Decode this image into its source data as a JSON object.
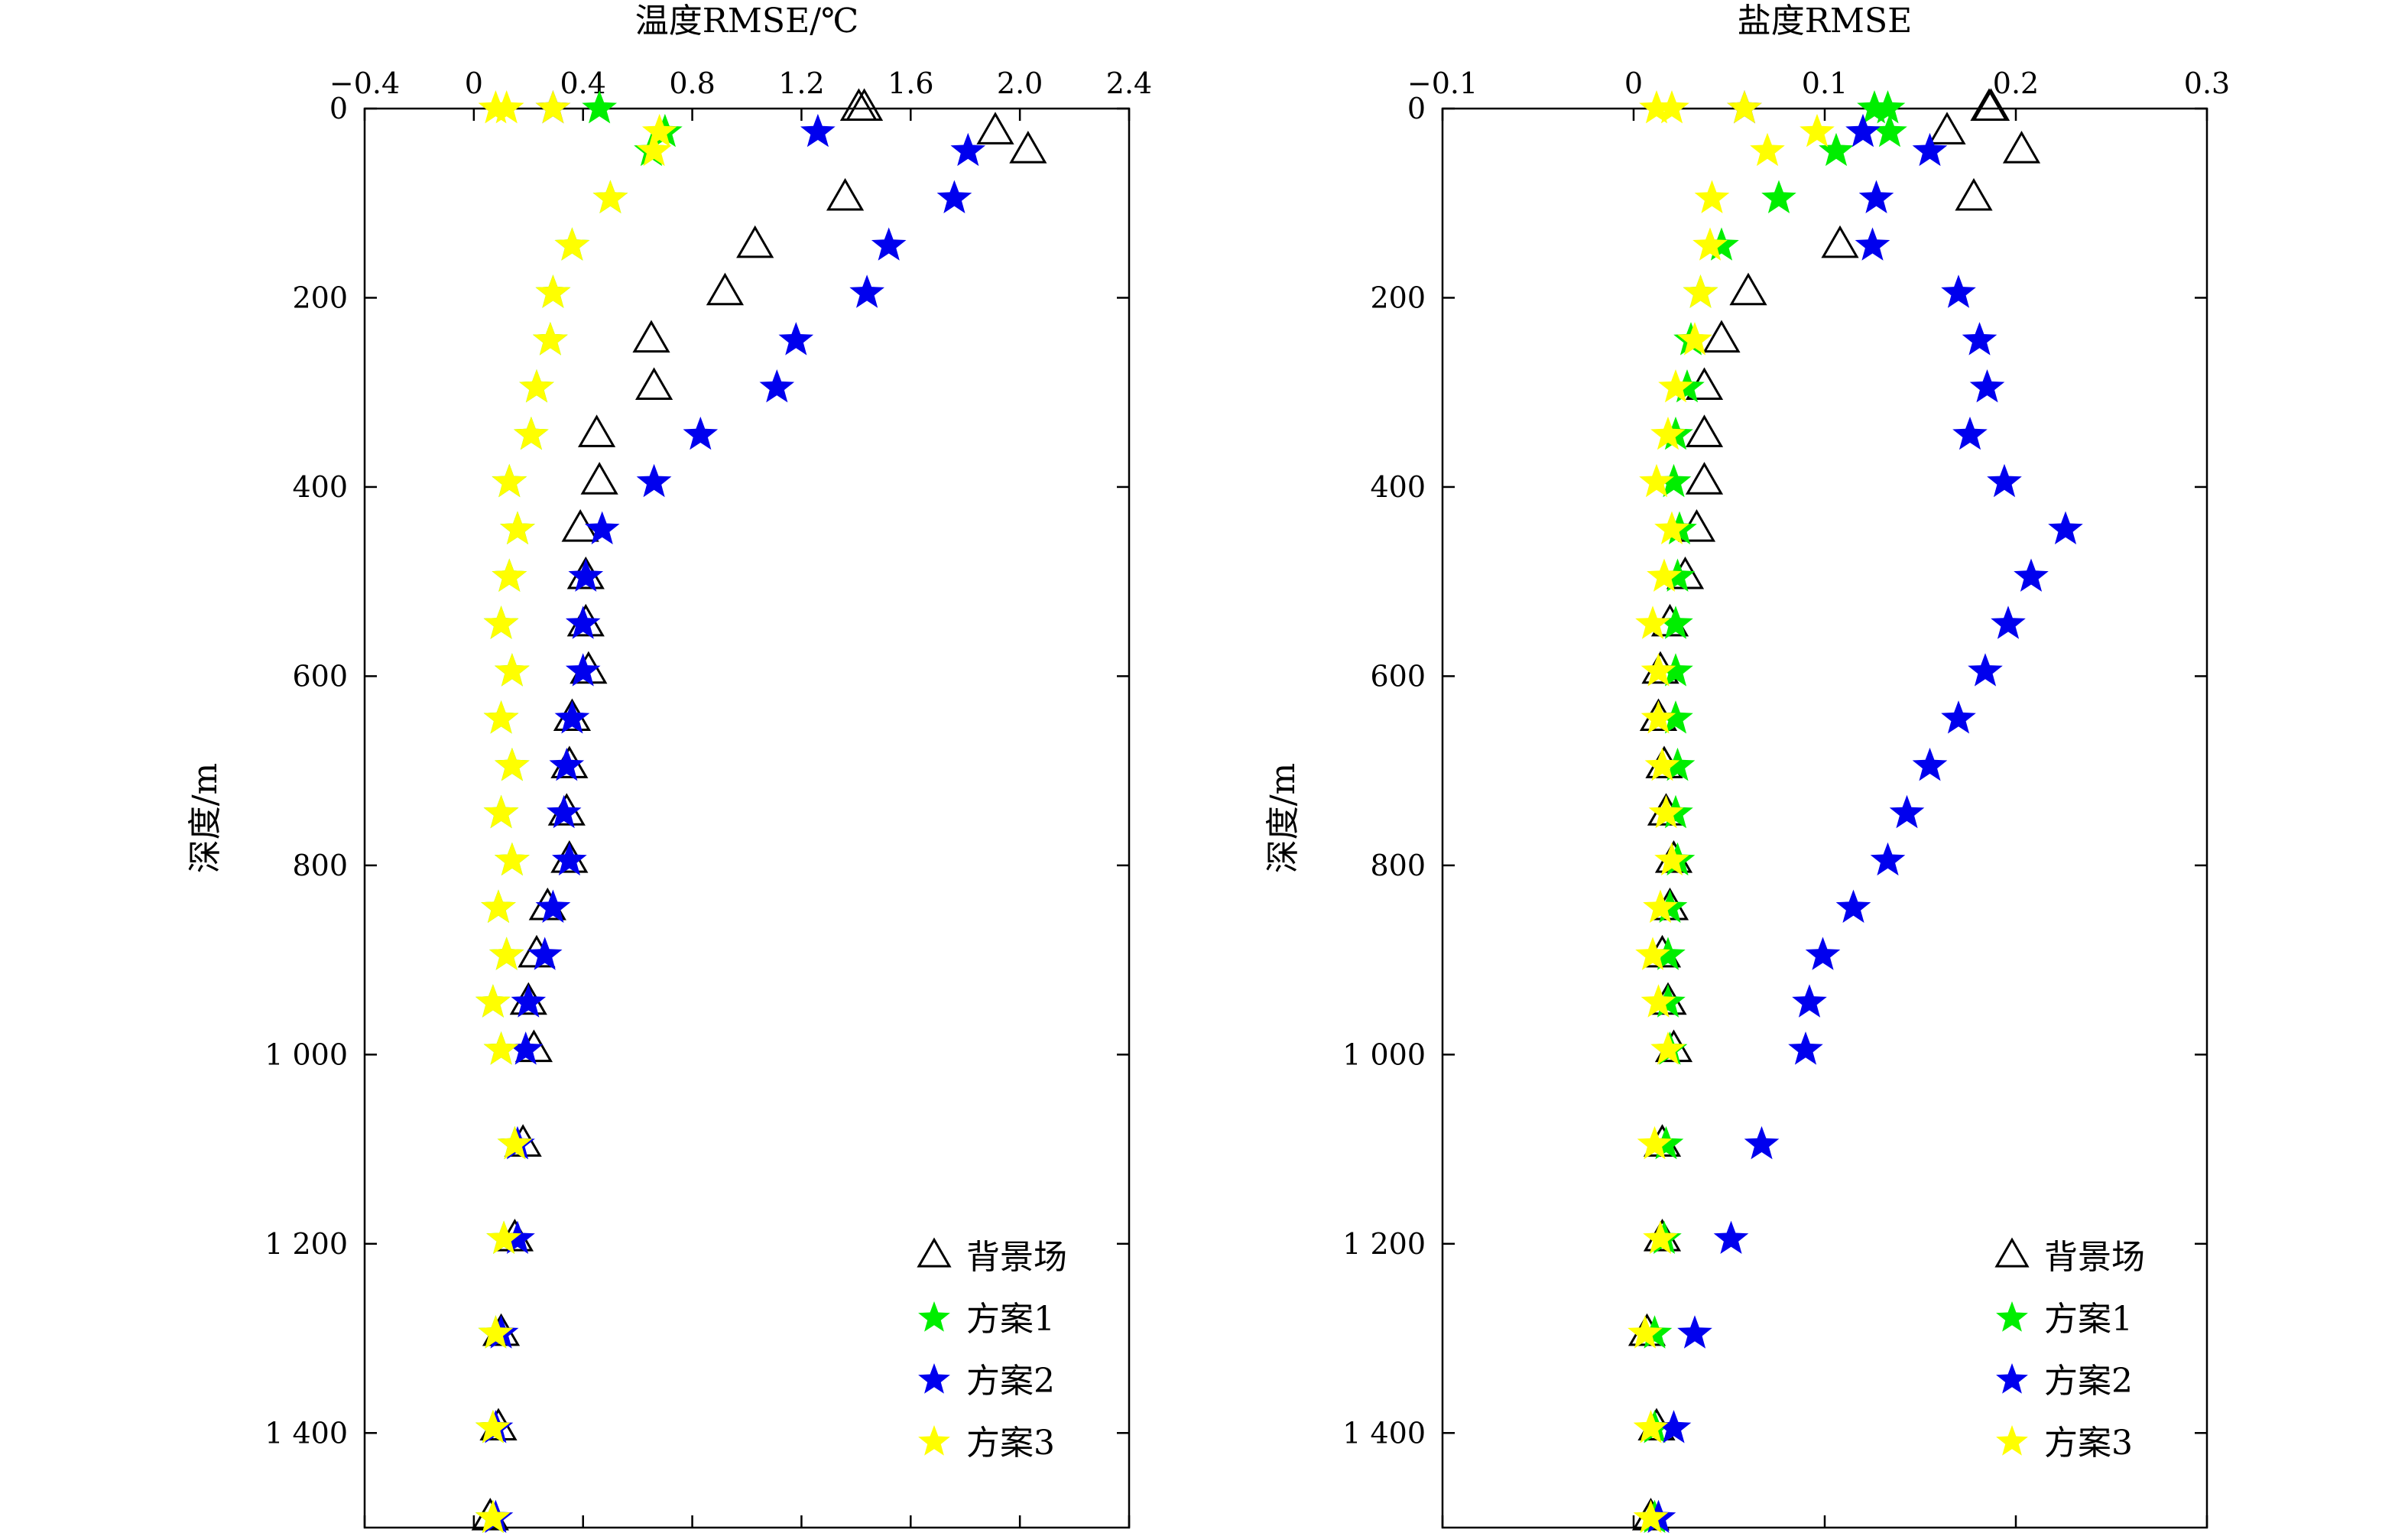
{
  "chart_data": [
    {
      "type": "scatter",
      "title": "",
      "xlabel": "温度RMSE/℃",
      "ylabel": "深度/m",
      "xlim": [
        -0.4,
        2.4
      ],
      "ylim": [
        1500,
        0
      ],
      "xticks": [
        -0.4,
        0,
        0.4,
        0.8,
        1.2,
        1.6,
        2.0,
        2.4
      ],
      "xtick_labels": [
        "−0.4",
        "0",
        "0.4",
        "0.8",
        "1.2",
        "1.6",
        "2.0",
        "2.4"
      ],
      "yticks": [
        0,
        200,
        400,
        600,
        800,
        1000,
        1200,
        1400
      ],
      "ytick_labels": [
        "0",
        "200",
        "400",
        "600",
        "800",
        "1 000",
        "1 200",
        "1 400"
      ],
      "x_axis_position": "top",
      "grid": false,
      "legend_position": "bottom-right",
      "series": [
        {
          "name": "背景场",
          "marker": "triangle-open",
          "color": "#000000",
          "points": [
            [
              1.41,
              0
            ],
            [
              1.43,
              0
            ],
            [
              1.91,
              25
            ],
            [
              2.03,
              45
            ],
            [
              1.36,
              95
            ],
            [
              1.03,
              145
            ],
            [
              0.92,
              195
            ],
            [
              0.65,
              245
            ],
            [
              0.66,
              295
            ],
            [
              0.45,
              345
            ],
            [
              0.46,
              395
            ],
            [
              0.39,
              445
            ],
            [
              0.41,
              495
            ],
            [
              0.41,
              545
            ],
            [
              0.42,
              595
            ],
            [
              0.36,
              645
            ],
            [
              0.35,
              695
            ],
            [
              0.34,
              745
            ],
            [
              0.35,
              795
            ],
            [
              0.27,
              845
            ],
            [
              0.23,
              895
            ],
            [
              0.2,
              945
            ],
            [
              0.22,
              995
            ],
            [
              0.18,
              1095
            ],
            [
              0.15,
              1195
            ],
            [
              0.1,
              1295
            ],
            [
              0.09,
              1395
            ],
            [
              0.06,
              1490
            ]
          ]
        },
        {
          "name": "方案1",
          "marker": "star",
          "color": "#00ee00",
          "points": [
            [
              0.46,
              0
            ],
            [
              0.7,
              25
            ],
            [
              0.65,
              45
            ],
            [
              0.5,
              95
            ],
            [
              0.36,
              145
            ],
            [
              0.29,
              195
            ],
            [
              0.28,
              245
            ],
            [
              0.23,
              295
            ],
            [
              0.21,
              345
            ],
            [
              0.13,
              395
            ],
            [
              0.16,
              445
            ],
            [
              0.13,
              495
            ],
            [
              0.1,
              545
            ],
            [
              0.14,
              595
            ],
            [
              0.1,
              645
            ],
            [
              0.14,
              695
            ],
            [
              0.1,
              745
            ],
            [
              0.14,
              795
            ],
            [
              0.09,
              845
            ],
            [
              0.12,
              895
            ],
            [
              0.07,
              945
            ],
            [
              0.1,
              995
            ],
            [
              0.15,
              1095
            ],
            [
              0.11,
              1195
            ],
            [
              0.08,
              1295
            ],
            [
              0.07,
              1395
            ],
            [
              0.07,
              1490
            ]
          ]
        },
        {
          "name": "方案2",
          "marker": "star",
          "color": "#0000ee",
          "points": [
            [
              0.29,
              0
            ],
            [
              1.26,
              25
            ],
            [
              1.81,
              45
            ],
            [
              1.76,
              95
            ],
            [
              1.52,
              145
            ],
            [
              1.44,
              195
            ],
            [
              1.18,
              245
            ],
            [
              1.11,
              295
            ],
            [
              0.83,
              345
            ],
            [
              0.66,
              395
            ],
            [
              0.47,
              445
            ],
            [
              0.41,
              495
            ],
            [
              0.4,
              545
            ],
            [
              0.4,
              595
            ],
            [
              0.36,
              645
            ],
            [
              0.34,
              695
            ],
            [
              0.33,
              745
            ],
            [
              0.35,
              795
            ],
            [
              0.29,
              845
            ],
            [
              0.26,
              895
            ],
            [
              0.2,
              945
            ],
            [
              0.19,
              995
            ],
            [
              0.16,
              1095
            ],
            [
              0.16,
              1195
            ],
            [
              0.1,
              1295
            ],
            [
              0.08,
              1395
            ],
            [
              0.08,
              1490
            ]
          ]
        },
        {
          "name": "方案3",
          "marker": "star",
          "color": "#ffff00",
          "points": [
            [
              0.08,
              0
            ],
            [
              0.12,
              0
            ],
            [
              0.29,
              0
            ],
            [
              0.68,
              25
            ],
            [
              0.66,
              45
            ],
            [
              0.5,
              95
            ],
            [
              0.36,
              145
            ],
            [
              0.29,
              195
            ],
            [
              0.28,
              245
            ],
            [
              0.23,
              295
            ],
            [
              0.21,
              345
            ],
            [
              0.13,
              395
            ],
            [
              0.16,
              445
            ],
            [
              0.13,
              495
            ],
            [
              0.1,
              545
            ],
            [
              0.14,
              595
            ],
            [
              0.1,
              645
            ],
            [
              0.14,
              695
            ],
            [
              0.1,
              745
            ],
            [
              0.14,
              795
            ],
            [
              0.09,
              845
            ],
            [
              0.12,
              895
            ],
            [
              0.07,
              945
            ],
            [
              0.1,
              995
            ],
            [
              0.15,
              1095
            ],
            [
              0.11,
              1195
            ],
            [
              0.08,
              1295
            ],
            [
              0.07,
              1395
            ],
            [
              0.07,
              1490
            ]
          ]
        }
      ],
      "legend": [
        "背景场",
        "方案1",
        "方案2",
        "方案3"
      ]
    },
    {
      "type": "scatter",
      "title": "",
      "xlabel": "盐度RMSE",
      "ylabel": "深度/m",
      "xlim": [
        -0.1,
        0.3
      ],
      "ylim": [
        1500,
        0
      ],
      "xticks": [
        -0.1,
        0,
        0.1,
        0.2,
        0.3
      ],
      "xtick_labels": [
        "−0.1",
        "0",
        "0.1",
        "0.2",
        "0.3"
      ],
      "yticks": [
        0,
        200,
        400,
        600,
        800,
        1000,
        1200,
        1400
      ],
      "ytick_labels": [
        "0",
        "200",
        "400",
        "600",
        "800",
        "1 000",
        "1 200",
        "1 400"
      ],
      "x_axis_position": "top",
      "grid": false,
      "legend_position": "bottom-right",
      "series": [
        {
          "name": "背景场",
          "marker": "triangle-open",
          "color": "#000000",
          "points": [
            [
              0.186,
              0
            ],
            [
              0.187,
              0
            ],
            [
              0.164,
              25
            ],
            [
              0.203,
              45
            ],
            [
              0.178,
              95
            ],
            [
              0.108,
              145
            ],
            [
              0.06,
              195
            ],
            [
              0.046,
              245
            ],
            [
              0.037,
              295
            ],
            [
              0.037,
              345
            ],
            [
              0.037,
              395
            ],
            [
              0.033,
              445
            ],
            [
              0.027,
              495
            ],
            [
              0.019,
              545
            ],
            [
              0.014,
              595
            ],
            [
              0.013,
              645
            ],
            [
              0.016,
              695
            ],
            [
              0.017,
              745
            ],
            [
              0.021,
              795
            ],
            [
              0.019,
              845
            ],
            [
              0.015,
              895
            ],
            [
              0.018,
              945
            ],
            [
              0.021,
              995
            ],
            [
              0.015,
              1095
            ],
            [
              0.015,
              1195
            ],
            [
              0.007,
              1295
            ],
            [
              0.012,
              1395
            ],
            [
              0.009,
              1490
            ]
          ]
        },
        {
          "name": "方案1",
          "marker": "star",
          "color": "#00ee00",
          "points": [
            [
              0.126,
              0
            ],
            [
              0.133,
              0
            ],
            [
              0.106,
              45
            ],
            [
              0.134,
              25
            ],
            [
              0.076,
              95
            ],
            [
              0.046,
              145
            ],
            [
              0.035,
              195
            ],
            [
              0.03,
              245
            ],
            [
              0.028,
              295
            ],
            [
              0.022,
              345
            ],
            [
              0.021,
              395
            ],
            [
              0.024,
              445
            ],
            [
              0.023,
              495
            ],
            [
              0.022,
              545
            ],
            [
              0.022,
              595
            ],
            [
              0.022,
              645
            ],
            [
              0.023,
              695
            ],
            [
              0.022,
              745
            ],
            [
              0.023,
              795
            ],
            [
              0.019,
              845
            ],
            [
              0.018,
              895
            ],
            [
              0.018,
              945
            ],
            [
              0.019,
              995
            ],
            [
              0.017,
              1095
            ],
            [
              0.016,
              1195
            ],
            [
              0.011,
              1295
            ],
            [
              0.011,
              1395
            ],
            [
              0.011,
              1490
            ]
          ]
        },
        {
          "name": "方案2",
          "marker": "star",
          "color": "#0000ee",
          "points": [
            [
              0.058,
              0
            ],
            [
              0.12,
              25
            ],
            [
              0.155,
              45
            ],
            [
              0.127,
              95
            ],
            [
              0.125,
              145
            ],
            [
              0.17,
              195
            ],
            [
              0.181,
              245
            ],
            [
              0.185,
              295
            ],
            [
              0.176,
              345
            ],
            [
              0.194,
              395
            ],
            [
              0.226,
              445
            ],
            [
              0.208,
              495
            ],
            [
              0.196,
              545
            ],
            [
              0.184,
              595
            ],
            [
              0.17,
              645
            ],
            [
              0.155,
              695
            ],
            [
              0.143,
              745
            ],
            [
              0.133,
              795
            ],
            [
              0.115,
              845
            ],
            [
              0.099,
              895
            ],
            [
              0.092,
              945
            ],
            [
              0.09,
              995
            ],
            [
              0.067,
              1095
            ],
            [
              0.051,
              1195
            ],
            [
              0.032,
              1295
            ],
            [
              0.021,
              1395
            ],
            [
              0.013,
              1490
            ]
          ]
        },
        {
          "name": "方案3",
          "marker": "star",
          "color": "#ffff00",
          "points": [
            [
              0.012,
              0
            ],
            [
              0.02,
              0
            ],
            [
              0.058,
              0
            ],
            [
              0.096,
              25
            ],
            [
              0.07,
              45
            ],
            [
              0.041,
              95
            ],
            [
              0.04,
              145
            ],
            [
              0.035,
              195
            ],
            [
              0.032,
              245
            ],
            [
              0.022,
              295
            ],
            [
              0.018,
              345
            ],
            [
              0.012,
              395
            ],
            [
              0.02,
              445
            ],
            [
              0.016,
              495
            ],
            [
              0.01,
              545
            ],
            [
              0.013,
              595
            ],
            [
              0.013,
              645
            ],
            [
              0.015,
              695
            ],
            [
              0.017,
              745
            ],
            [
              0.02,
              795
            ],
            [
              0.014,
              845
            ],
            [
              0.01,
              895
            ],
            [
              0.013,
              945
            ],
            [
              0.018,
              995
            ],
            [
              0.011,
              1095
            ],
            [
              0.014,
              1195
            ],
            [
              0.006,
              1295
            ],
            [
              0.009,
              1395
            ],
            [
              0.009,
              1490
            ]
          ]
        }
      ],
      "legend": [
        "背景场",
        "方案1",
        "方案2",
        "方案3"
      ]
    }
  ]
}
